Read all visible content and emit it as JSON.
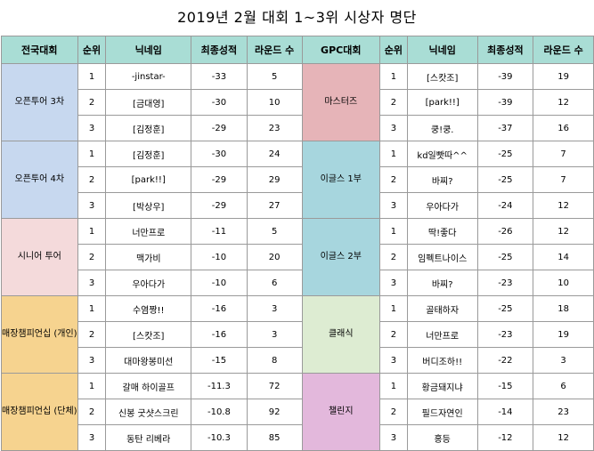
{
  "title": "2019년 2월 대회 1~3위 시상자 명단",
  "headers": {
    "left": [
      "전국대회",
      "순위",
      "닉네임",
      "최종성적",
      "라운드 수"
    ],
    "right": [
      "GPC대회",
      "순위",
      "닉네임",
      "최종성적",
      "라운드 수"
    ]
  },
  "colors": {
    "header": "#a9ddd5",
    "open3": "#c7d8ef",
    "open4": "#c7d8ef",
    "senior": "#f4dadb",
    "store_solo": "#f6d38f",
    "store_team": "#f6d38f",
    "masters": "#e6b4b8",
    "eagles1": "#a7d6de",
    "eagles2": "#a7d6de",
    "classic": "#ddecd2",
    "challenge": "#e3b8dc"
  },
  "left": [
    {
      "group": "오픈투어 3차",
      "rows": [
        {
          "rank": "1",
          "nick": "-jinstar-",
          "score": "-33",
          "rounds": "5"
        },
        {
          "rank": "2",
          "nick": "[금대영]",
          "score": "-30",
          "rounds": "10"
        },
        {
          "rank": "3",
          "nick": "[김정훈]",
          "score": "-29",
          "rounds": "23"
        }
      ]
    },
    {
      "group": "오픈투어 4차",
      "rows": [
        {
          "rank": "1",
          "nick": "[김정훈]",
          "score": "-30",
          "rounds": "24"
        },
        {
          "rank": "2",
          "nick": "[park!!]",
          "score": "-29",
          "rounds": "29"
        },
        {
          "rank": "3",
          "nick": "[박상우]",
          "score": "-29",
          "rounds": "27"
        }
      ]
    },
    {
      "group": "시니어 투어",
      "rows": [
        {
          "rank": "1",
          "nick": "너만프로",
          "score": "-11",
          "rounds": "5"
        },
        {
          "rank": "2",
          "nick": "맥가비",
          "score": "-10",
          "rounds": "20"
        },
        {
          "rank": "3",
          "nick": "우아다가",
          "score": "-10",
          "rounds": "6"
        }
      ]
    },
    {
      "group": "매장챔피언십 (개인)",
      "rows": [
        {
          "rank": "1",
          "nick": "수염짱!!",
          "score": "-16",
          "rounds": "3"
        },
        {
          "rank": "2",
          "nick": "[스캇조]",
          "score": "-16",
          "rounds": "3"
        },
        {
          "rank": "3",
          "nick": "대마왕봉미선",
          "score": "-15",
          "rounds": "8"
        }
      ]
    },
    {
      "group": "매장챔피언십 (단체)",
      "rows": [
        {
          "rank": "1",
          "nick": "갈매 하이골프",
          "score": "-11.3",
          "rounds": "72"
        },
        {
          "rank": "2",
          "nick": "신봉 굿샷스크린",
          "score": "-10.8",
          "rounds": "92"
        },
        {
          "rank": "3",
          "nick": "동탄 리베라",
          "score": "-10.3",
          "rounds": "85"
        }
      ]
    }
  ],
  "right": [
    {
      "group": "마스터즈",
      "rows": [
        {
          "rank": "1",
          "nick": "[스캇조]",
          "score": "-39",
          "rounds": "19"
        },
        {
          "rank": "2",
          "nick": "[park!!]",
          "score": "-39",
          "rounds": "12"
        },
        {
          "rank": "3",
          "nick": "쿵!쿵.",
          "score": "-37",
          "rounds": "16"
        }
      ]
    },
    {
      "group": "이글스 1부",
      "rows": [
        {
          "rank": "1",
          "nick": "kd일빳따^^",
          "score": "-25",
          "rounds": "7"
        },
        {
          "rank": "2",
          "nick": "바찌?",
          "score": "-25",
          "rounds": "7"
        },
        {
          "rank": "3",
          "nick": "우아다가",
          "score": "-24",
          "rounds": "12"
        }
      ]
    },
    {
      "group": "이글스 2부",
      "rows": [
        {
          "rank": "1",
          "nick": "딱!좋다",
          "score": "-26",
          "rounds": "12"
        },
        {
          "rank": "2",
          "nick": "임펙트나이스",
          "score": "-25",
          "rounds": "14"
        },
        {
          "rank": "3",
          "nick": "바찌?",
          "score": "-23",
          "rounds": "10"
        }
      ]
    },
    {
      "group": "클래식",
      "rows": [
        {
          "rank": "1",
          "nick": "골태하자",
          "score": "-25",
          "rounds": "18"
        },
        {
          "rank": "2",
          "nick": "너만프로",
          "score": "-23",
          "rounds": "19"
        },
        {
          "rank": "3",
          "nick": "버디조하!!",
          "score": "-22",
          "rounds": "3"
        }
      ]
    },
    {
      "group": "챌린지",
      "rows": [
        {
          "rank": "1",
          "nick": "황금돼지냐",
          "score": "-15",
          "rounds": "6"
        },
        {
          "rank": "2",
          "nick": "필드자연인",
          "score": "-14",
          "rounds": "23"
        },
        {
          "rank": "3",
          "nick": "홍등",
          "score": "-12",
          "rounds": "12"
        }
      ]
    }
  ]
}
